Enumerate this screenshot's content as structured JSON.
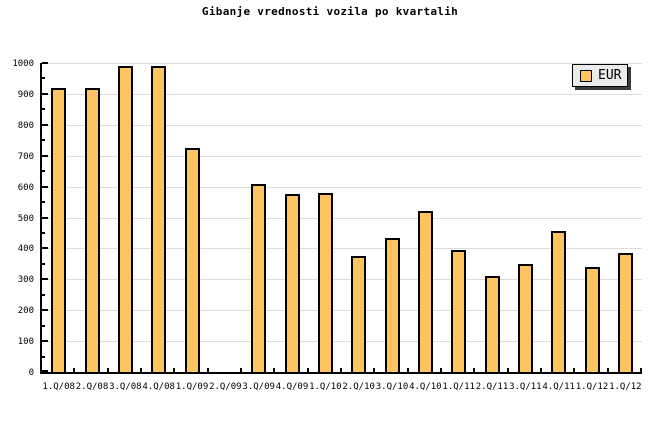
{
  "title": "Gibanje vrednosti vozila po kvartalih",
  "legend": {
    "label": "EUR"
  },
  "colors": {
    "background": "#FFFFFF",
    "bar_fill": "#FDC45F",
    "bar_border": "#000000",
    "grid": "#DCDCDC",
    "axis": "#000000",
    "legend_bg": "#EBEBEB",
    "legend_shadow": "#3A3A3A"
  },
  "chart_data": {
    "type": "bar",
    "title": "Gibanje vrednosti vozila po kvartalih",
    "series_name": "EUR",
    "categories": [
      "1.Q/08",
      "2.Q/08",
      "3.Q/08",
      "4.Q/08",
      "1.Q/09",
      "2.Q/09",
      "3.Q/09",
      "4.Q/09",
      "1.Q/10",
      "2.Q/10",
      "3.Q/10",
      "4.Q/10",
      "1.Q/11",
      "2.Q/11",
      "3.Q/11",
      "4.Q/11",
      "1.Q/12",
      "1.Q/12"
    ],
    "values": [
      920,
      920,
      990,
      990,
      725,
      null,
      610,
      575,
      580,
      375,
      435,
      520,
      395,
      310,
      350,
      455,
      340,
      385
    ],
    "xlabel": "",
    "ylabel": "",
    "ylim": [
      0,
      1000
    ],
    "y_major_step": 100,
    "y_minor_step": 50,
    "y_ticks": [
      "0",
      "100",
      "200",
      "300",
      "400",
      "500",
      "600",
      "700",
      "800",
      "900",
      "1000"
    ],
    "grid": "horizontal",
    "legend_position": "top-right"
  }
}
